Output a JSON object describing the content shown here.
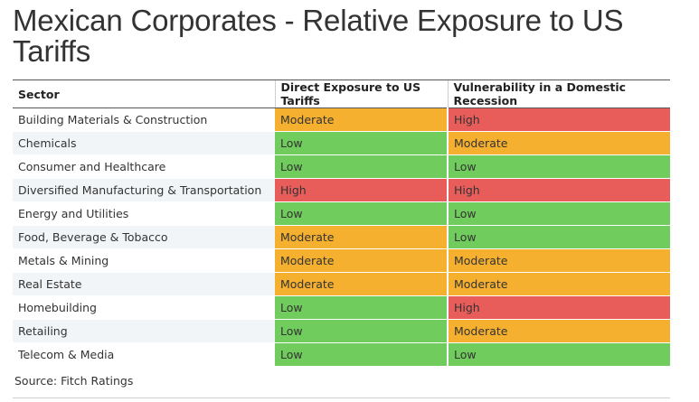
{
  "title": "Mexican Corporates - Relative Exposure to US Tariffs",
  "source": "Source: Fitch Ratings",
  "colors": {
    "Low": "#70cc5c",
    "Moderate": "#f4b02e",
    "High": "#e85c5a"
  },
  "chart_data": {
    "type": "table",
    "title": "Mexican Corporates - Relative Exposure to US Tariffs",
    "columns": [
      "Sector",
      "Direct Exposure to US Tariffs",
      "Vulnerability in a Domestic Recession"
    ],
    "rows": [
      [
        "Building Materials & Construction",
        "Moderate",
        "High"
      ],
      [
        "Chemicals",
        "Low",
        "Moderate"
      ],
      [
        "Consumer and Healthcare",
        "Low",
        "Low"
      ],
      [
        "Diversified Manufacturing & Transportation",
        "High",
        "High"
      ],
      [
        "Energy and Utilities",
        "Low",
        "Low"
      ],
      [
        "Food, Beverage & Tobacco",
        "Moderate",
        "Low"
      ],
      [
        "Metals & Mining",
        "Moderate",
        "Moderate"
      ],
      [
        "Real Estate",
        "Moderate",
        "Moderate"
      ],
      [
        "Homebuilding",
        "Low",
        "High"
      ],
      [
        "Retailing",
        "Low",
        "Moderate"
      ],
      [
        "Telecom & Media",
        "Low",
        "Low"
      ]
    ]
  }
}
